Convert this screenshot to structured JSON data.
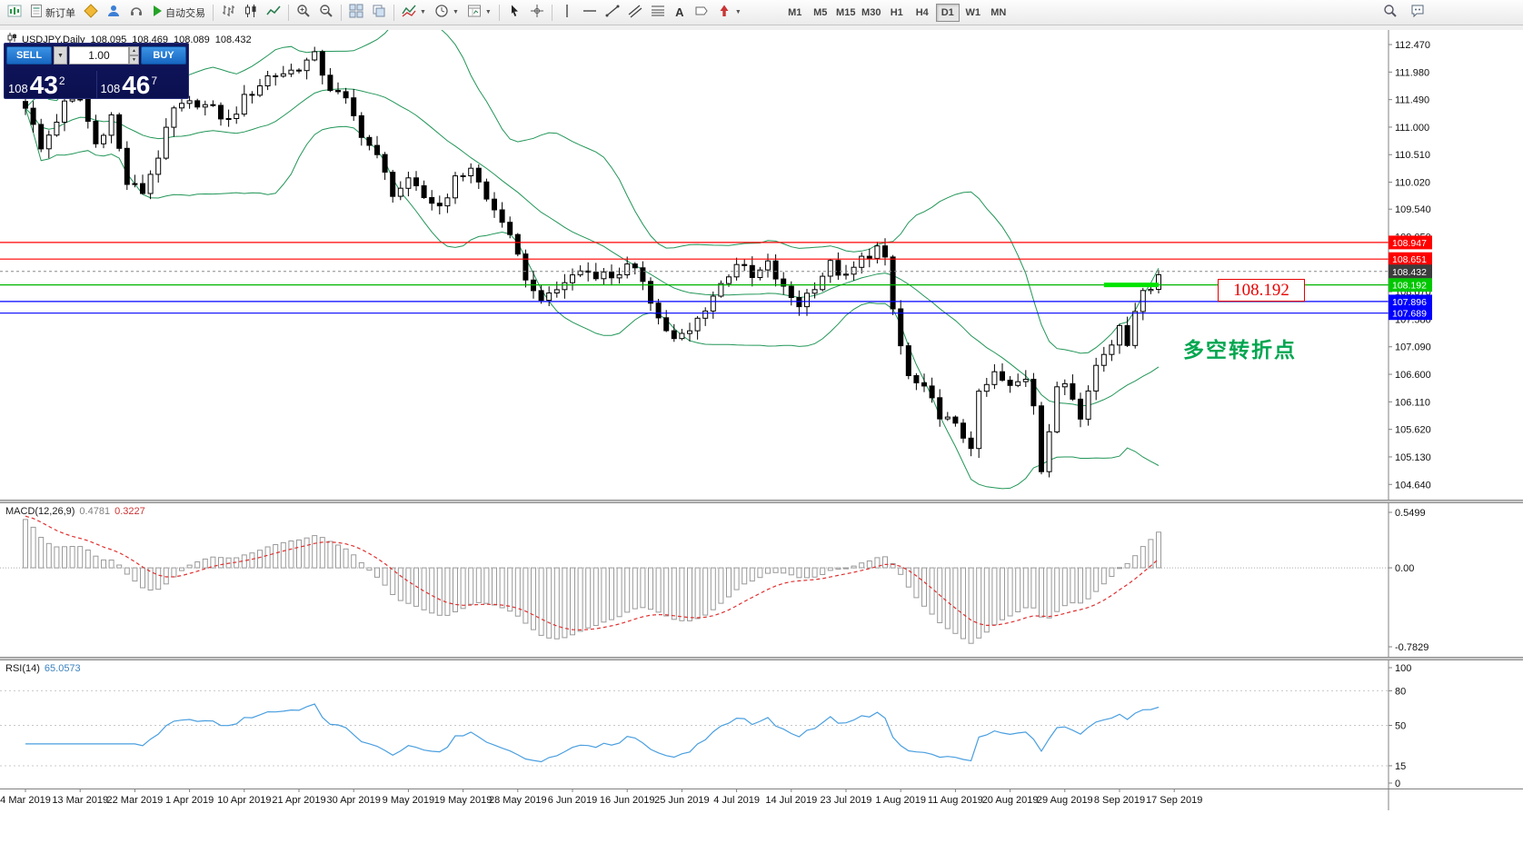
{
  "toolbar": {
    "new_order": "新订单",
    "auto_trading": "自动交易",
    "timeframes": [
      "M1",
      "M5",
      "M15",
      "M30",
      "H1",
      "H4",
      "D1",
      "W1",
      "MN"
    ],
    "active_timeframe": "D1"
  },
  "chart_header": {
    "symbol": "USDJPY,Daily",
    "open": "108.095",
    "high": "108.469",
    "low": "108.089",
    "close": "108.432"
  },
  "trade_panel": {
    "sell_label": "SELL",
    "buy_label": "BUY",
    "volume": "1.00",
    "sell_small": "108",
    "sell_big": "43",
    "sell_sup": "2",
    "buy_small": "108",
    "buy_big": "46",
    "buy_sup": "7"
  },
  "price_axis": {
    "ticks": [
      "112.470",
      "111.980",
      "111.490",
      "111.000",
      "110.510",
      "110.020",
      "109.540",
      "109.050",
      "108.560",
      "108.070",
      "107.580",
      "107.090",
      "106.600",
      "106.110",
      "105.620",
      "105.130",
      "104.640"
    ]
  },
  "hlines": [
    {
      "price": 108.947,
      "label": "108.947",
      "color": "#ff0000"
    },
    {
      "price": 108.651,
      "label": "108.651",
      "color": "#ff0000"
    },
    {
      "price": 108.192,
      "label": "108.192",
      "color": "#00b400",
      "box": "#00c800"
    },
    {
      "price": 107.896,
      "label": "107.896",
      "color": "#0000ff"
    },
    {
      "price": 107.689,
      "label": "107.689",
      "color": "#0000ff"
    }
  ],
  "current_price": {
    "value": 108.432,
    "label": "108.432",
    "box": "#3c3c3c"
  },
  "annotations": {
    "price_callout": "108.192",
    "note_cn": "多空转折点",
    "highlight": {
      "price": 108.192,
      "from_index": 138,
      "to_index": 145,
      "color": "#00e400"
    }
  },
  "macd_panel": {
    "name": "MACD(12,26,9)",
    "value_main": "0.4781",
    "value_signal": "0.3227",
    "scale_max": "0.5499",
    "scale_zero": "0.00",
    "scale_min": "-0.7829"
  },
  "rsi_panel": {
    "name": "RSI(14)",
    "value": "65.0573",
    "ticks": [
      "100",
      "80",
      "50",
      "15",
      "0"
    ],
    "levels": [
      80,
      50,
      15
    ]
  },
  "date_axis": [
    "4 Mar 2019",
    "13 Mar 2019",
    "22 Mar 2019",
    "1 Apr 2019",
    "10 Apr 2019",
    "21 Apr 2019",
    "30 Apr 2019",
    "9 May 2019",
    "19 May 2019",
    "28 May 2019",
    "6 Jun 2019",
    "16 Jun 2019",
    "25 Jun 2019",
    "4 Jul 2019",
    "14 Jul 2019",
    "23 Jul 2019",
    "1 Aug 2019",
    "11 Aug 2019",
    "20 Aug 2019",
    "29 Aug 2019",
    "8 Sep 2019",
    "17 Sep 2019"
  ],
  "chart_data": {
    "type": "candlestick",
    "symbol": "USDJPY",
    "period": "Daily",
    "visible_range": [
      "4 Mar 2019",
      "17 Sep 2019"
    ],
    "candle_count": 146,
    "price_range": [
      104.45,
      112.6
    ],
    "last_ohlc": {
      "open": 108.095,
      "high": 108.469,
      "low": 108.089,
      "close": 108.432
    },
    "overlays": {
      "bollinger_period": 20,
      "bollinger_deviation": 2,
      "bollinger_color": "#229658"
    },
    "horizontal_levels": [
      108.947,
      108.651,
      108.432,
      108.192,
      107.896,
      107.689
    ],
    "close_waypoints": [
      [
        0,
        111.4
      ],
      [
        2,
        110.6
      ],
      [
        5,
        111.4
      ],
      [
        7,
        111.5
      ],
      [
        9,
        110.7
      ],
      [
        11,
        111.2
      ],
      [
        13,
        110.0
      ],
      [
        15,
        109.85
      ],
      [
        17,
        110.5
      ],
      [
        19,
        111.3
      ],
      [
        22,
        111.45
      ],
      [
        24,
        111.3
      ],
      [
        26,
        111.1
      ],
      [
        28,
        111.5
      ],
      [
        31,
        111.9
      ],
      [
        34,
        112.0
      ],
      [
        37,
        112.25
      ],
      [
        39,
        111.7
      ],
      [
        41,
        111.45
      ],
      [
        43,
        110.9
      ],
      [
        45,
        110.45
      ],
      [
        47,
        109.85
      ],
      [
        49,
        110.0
      ],
      [
        51,
        109.75
      ],
      [
        53,
        109.6
      ],
      [
        55,
        110.05
      ],
      [
        57,
        110.3
      ],
      [
        59,
        109.7
      ],
      [
        61,
        109.35
      ],
      [
        63,
        108.65
      ],
      [
        65,
        108.05
      ],
      [
        67,
        107.95
      ],
      [
        69,
        108.25
      ],
      [
        71,
        108.45
      ],
      [
        73,
        108.4
      ],
      [
        75,
        108.35
      ],
      [
        77,
        108.5
      ],
      [
        79,
        108.3
      ],
      [
        81,
        107.6
      ],
      [
        83,
        107.2
      ],
      [
        85,
        107.35
      ],
      [
        87,
        107.8
      ],
      [
        89,
        108.2
      ],
      [
        91,
        108.6
      ],
      [
        93,
        108.3
      ],
      [
        95,
        108.55
      ],
      [
        97,
        108.1
      ],
      [
        99,
        107.85
      ],
      [
        101,
        108.2
      ],
      [
        103,
        108.55
      ],
      [
        105,
        108.3
      ],
      [
        107,
        108.65
      ],
      [
        109,
        108.85
      ],
      [
        110,
        108.6
      ],
      [
        111,
        107.75
      ],
      [
        112,
        107.1
      ],
      [
        113,
        106.55
      ],
      [
        115,
        106.3
      ],
      [
        117,
        105.9
      ],
      [
        119,
        105.65
      ],
      [
        121,
        105.35
      ],
      [
        122,
        106.2
      ],
      [
        124,
        106.6
      ],
      [
        126,
        106.35
      ],
      [
        128,
        106.55
      ],
      [
        129,
        106.1
      ],
      [
        130,
        104.95
      ],
      [
        131,
        105.6
      ],
      [
        132,
        106.3
      ],
      [
        133,
        106.45
      ],
      [
        134,
        106.2
      ],
      [
        135,
        105.9
      ],
      [
        136,
        106.4
      ],
      [
        137,
        106.75
      ],
      [
        139,
        107.15
      ],
      [
        140,
        107.5
      ],
      [
        141,
        107.2
      ],
      [
        142,
        107.8
      ],
      [
        143,
        108.0
      ],
      [
        144,
        108.2
      ],
      [
        145,
        108.43
      ]
    ]
  }
}
